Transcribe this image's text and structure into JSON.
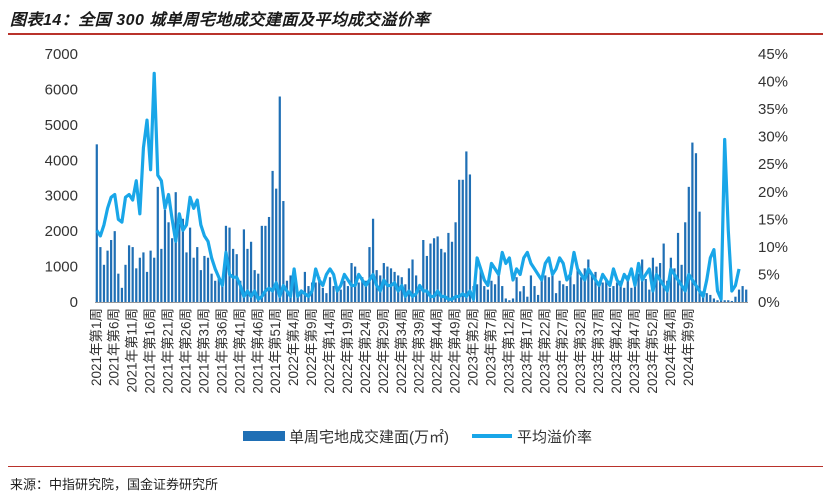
{
  "figure": {
    "title": "图表14：全国 300 城单周宅地成交建面及平均成交溢价率",
    "source": "来源：中指研究院，国金证券研究所"
  },
  "colors": {
    "bar": "#1f6fb5",
    "line": "#19a6e8",
    "rule": "#b9322b"
  },
  "chart_data": {
    "type": "bar",
    "y_left": {
      "min": 0,
      "max": 7000,
      "ticks": [
        0,
        1000,
        2000,
        3000,
        4000,
        5000,
        6000,
        7000
      ],
      "tick_labels": [
        "0",
        "1000",
        "2000",
        "3000",
        "4000",
        "5000",
        "6000",
        "7000"
      ]
    },
    "y_right": {
      "min": 0,
      "max": 0.45,
      "ticks": [
        0,
        0.05,
        0.1,
        0.15,
        0.2,
        0.25,
        0.3,
        0.35,
        0.4,
        0.45
      ],
      "tick_labels": [
        "0%",
        "5%",
        "10%",
        "15%",
        "20%",
        "25%",
        "30%",
        "35%",
        "40%",
        "45%"
      ]
    },
    "x_tick_labels": [
      "2021年第1周",
      "2021年第6周",
      "2021年第11周",
      "2021年第16周",
      "2021年第21周",
      "2021年第26周",
      "2021年第31周",
      "2021年第36周",
      "2021年第41周",
      "2021年第46周",
      "2021年第51周",
      "2022年第4周",
      "2022年第9周",
      "2022年第14周",
      "2022年第19周",
      "2022年第24周",
      "2022年第29周",
      "2022年第34周",
      "2022年第39周",
      "2022年第44周",
      "2022年第49周",
      "2023年第2周",
      "2023年第7周",
      "2023年第12周",
      "2023年第17周",
      "2023年第22周",
      "2023年第27周",
      "2023年第32周",
      "2023年第37周",
      "2023年第42周",
      "2023年第47周",
      "2023年第52周",
      "2024年第4周",
      "2024年第9周"
    ],
    "legend": {
      "position": "bottom-center"
    },
    "series": [
      {
        "name": "单周宅地成交建面(万㎡)",
        "kind": "bar",
        "axis": "left",
        "values": [
          4450,
          1550,
          1050,
          1450,
          1750,
          2000,
          800,
          400,
          1050,
          1600,
          1550,
          950,
          1250,
          1400,
          850,
          1450,
          1250,
          3250,
          1500,
          2600,
          2250,
          1800,
          3100,
          2200,
          2350,
          1400,
          2100,
          1250,
          1550,
          900,
          1300,
          1250,
          800,
          600,
          650,
          550,
          2150,
          2100,
          1500,
          1350,
          600,
          2050,
          1500,
          1700,
          900,
          800,
          2150,
          2150,
          2400,
          3700,
          3200,
          5800,
          2850,
          600,
          750,
          900,
          250,
          300,
          850,
          450,
          550,
          550,
          700,
          400,
          250,
          700,
          450,
          300,
          350,
          600,
          450,
          1100,
          1000,
          550,
          700,
          600,
          1550,
          2350,
          900,
          750,
          1100,
          1000,
          950,
          850,
          750,
          700,
          500,
          950,
          1200,
          750,
          350,
          1750,
          1300,
          1650,
          1800,
          1850,
          1500,
          1400,
          1950,
          1700,
          2250,
          3450,
          3450,
          4250,
          3600,
          450,
          500,
          900,
          450,
          350,
          600,
          500,
          800,
          450,
          100,
          50,
          100,
          700,
          300,
          450,
          150,
          750,
          450,
          200,
          650,
          750,
          700,
          800,
          250,
          600,
          500,
          450,
          850,
          500,
          900,
          700,
          950,
          1200,
          750,
          850,
          500,
          550,
          650,
          400,
          450,
          550,
          600,
          400,
          750,
          400,
          700,
          800,
          1200,
          650,
          350,
          1250,
          1000,
          1100,
          1650,
          600,
          1250,
          950,
          1950,
          1050,
          2250,
          3250,
          4500,
          4200,
          2550,
          300,
          250,
          200,
          100,
          50,
          150,
          50,
          50,
          30,
          150,
          350,
          450,
          350
        ]
      },
      {
        "name": "平均溢价率",
        "kind": "line",
        "axis": "right",
        "values": [
          0.13,
          0.12,
          0.14,
          0.17,
          0.19,
          0.195,
          0.15,
          0.145,
          0.19,
          0.195,
          0.185,
          0.22,
          0.16,
          0.28,
          0.33,
          0.24,
          0.415,
          0.23,
          0.22,
          0.17,
          0.195,
          0.15,
          0.11,
          0.16,
          0.13,
          0.14,
          0.19,
          0.17,
          0.185,
          0.14,
          0.12,
          0.11,
          0.08,
          0.06,
          0.045,
          0.03,
          0.09,
          0.05,
          0.045,
          0.045,
          0.03,
          0.01,
          0.02,
          0.01,
          0.02,
          0.005,
          0.01,
          0.02,
          0.025,
          0.02,
          0.035,
          0.01,
          0.03,
          0.02,
          0.01,
          0.06,
          0.01,
          0.02,
          0.015,
          0.01,
          0.02,
          0.06,
          0.04,
          0.03,
          0.05,
          0.06,
          0.05,
          0.02,
          0.03,
          0.05,
          0.04,
          0.03,
          0.03,
          0.05,
          0.04,
          0.03,
          0.04,
          0.05,
          0.03,
          0.02,
          0.04,
          0.03,
          0.03,
          0.035,
          0.02,
          0.03,
          0.01,
          0.02,
          0.01,
          0.015,
          0.03,
          0.02,
          0.02,
          0.01,
          0.01,
          0.02,
          0.01,
          0.01,
          0.005,
          0.005,
          0.01,
          0.01,
          0.015,
          0.01,
          0.02,
          0.005,
          0.08,
          0.06,
          0.04,
          0.03,
          0.07,
          0.06,
          0.05,
          0.09,
          0.07,
          0.08,
          0.04,
          0.06,
          0.05,
          0.08,
          0.09,
          0.07,
          0.06,
          0.05,
          0.04,
          0.07,
          0.08,
          0.05,
          0.06,
          0.08,
          0.07,
          0.04,
          0.05,
          0.09,
          0.06,
          0.05,
          0.04,
          0.06,
          0.05,
          0.04,
          0.03,
          0.05,
          0.04,
          0.03,
          0.06,
          0.04,
          0.03,
          0.05,
          0.04,
          0.06,
          0.03,
          0.07,
          0.04,
          0.05,
          0.06,
          0.02,
          0.05,
          0.04,
          0.03,
          0.02,
          0.06,
          0.05,
          0.04,
          0.03,
          0.02,
          0.05,
          0.04,
          0.03,
          0.02,
          0.01,
          0.04,
          0.08,
          0.095,
          0.02,
          0.005,
          0.295,
          0.13,
          0.02,
          0.03,
          0.06
        ]
      }
    ]
  }
}
